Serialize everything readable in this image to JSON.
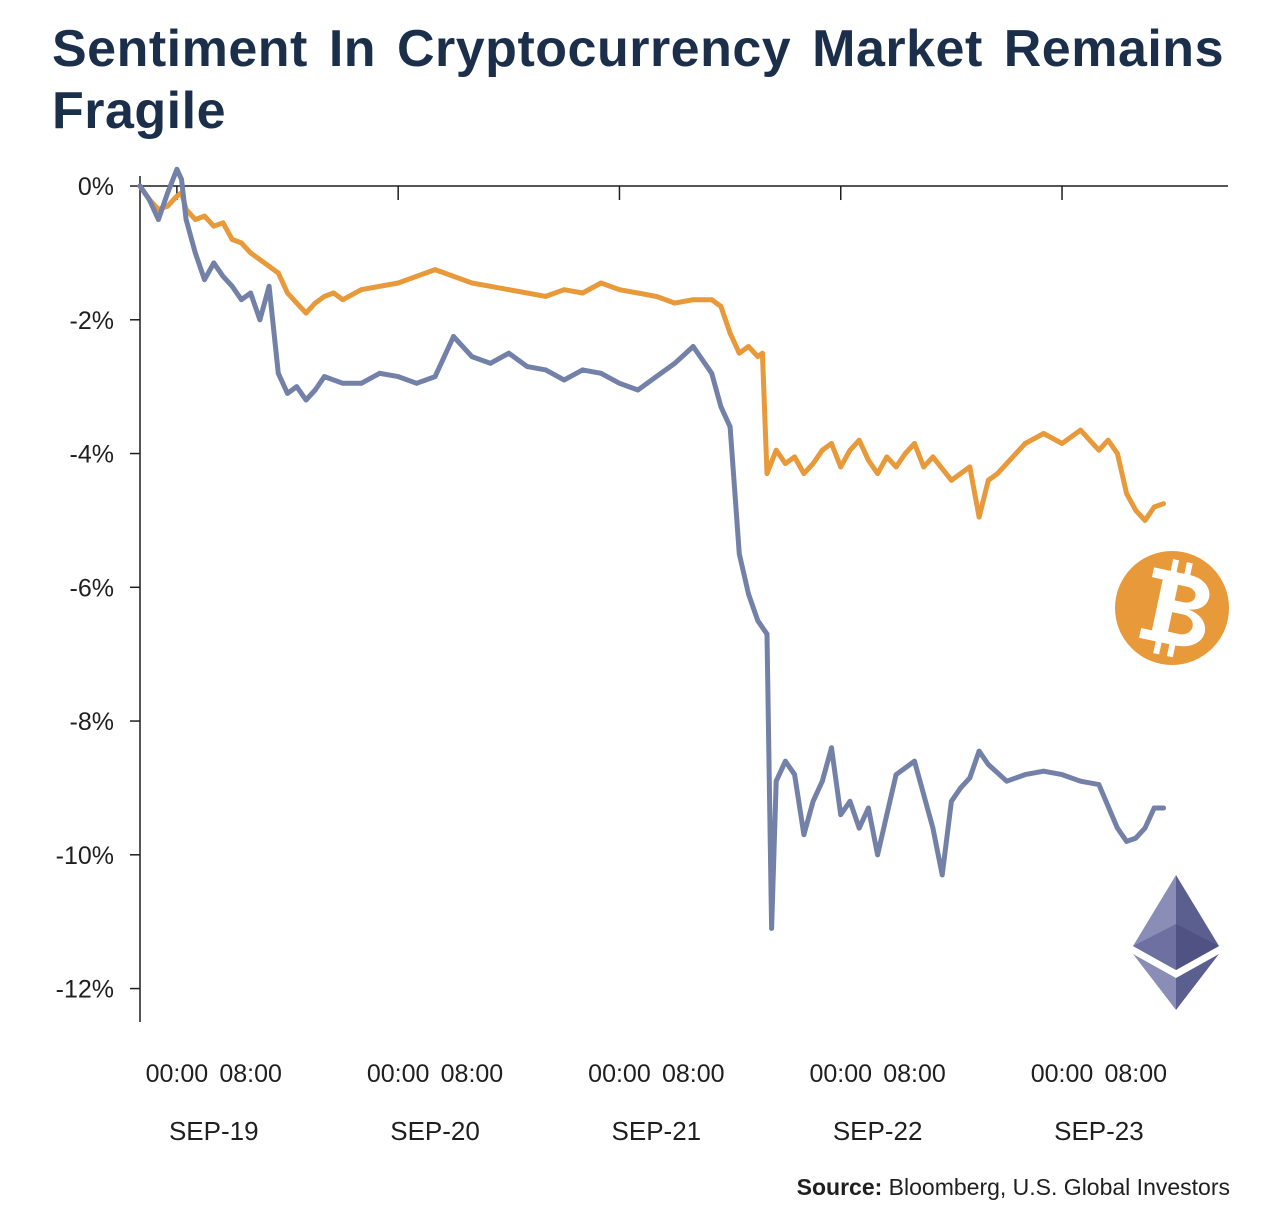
{
  "title": "Sentiment In Cryptocurrency Market Remains Fragile",
  "source_label": "Source:",
  "source_text": " Bloomberg, U.S. Global Investors",
  "icons": {
    "bitcoin": "bitcoin-icon",
    "ethereum": "ethereum-icon"
  },
  "colors": {
    "title": "#1b2f4b",
    "bitcoin": "#e8993a",
    "ethereum": "#7381a8",
    "ethereum_icon_light": "#8a8eb7",
    "ethereum_icon_dark": "#5b5f8f",
    "axis": "#1f1f1f"
  },
  "chart_data": {
    "type": "line",
    "title": "Sentiment In Cryptocurrency Market Remains Fragile",
    "xlabel": "",
    "ylabel": "",
    "ylim": [
      -12.5,
      0.15
    ],
    "xlim": [
      0,
      118
    ],
    "y_ticks": [
      0,
      -2,
      -4,
      -6,
      -8,
      -10,
      -12
    ],
    "y_tick_labels": [
      "0%",
      "-2%",
      "-4%",
      "-6%",
      "-8%",
      "-10%",
      "-12%"
    ],
    "x_ticks": [
      4,
      12,
      28,
      36,
      52,
      60,
      76,
      84,
      100,
      108
    ],
    "x_tick_labels": [
      "00:00",
      "08:00",
      "00:00",
      "08:00",
      "00:00",
      "08:00",
      "00:00",
      "08:00",
      "00:00",
      "08:00"
    ],
    "day_labels": [
      "SEP-19",
      "SEP-20",
      "SEP-21",
      "SEP-22",
      "SEP-23"
    ],
    "day_label_positions": [
      8,
      32,
      56,
      80,
      104
    ],
    "grid": false,
    "legend": "none",
    "x_unit": "hours",
    "series": [
      {
        "icon": "bitcoin-icon",
        "color": "#e8993a",
        "x": [
          0,
          1,
          2,
          3,
          4,
          4.5,
          5,
          6,
          7,
          8,
          9,
          10,
          11,
          12,
          13,
          14,
          15,
          16,
          17,
          18,
          19,
          20,
          21,
          22,
          24,
          26,
          28,
          30,
          32,
          34,
          36,
          38,
          40,
          42,
          44,
          46,
          48,
          50,
          52,
          54,
          56,
          58,
          60,
          62,
          63,
          64,
          65,
          66,
          67,
          67.5,
          68,
          69,
          70,
          71,
          72,
          73,
          74,
          75,
          76,
          77,
          78,
          79,
          80,
          81,
          82,
          83,
          84,
          85,
          86,
          88,
          90,
          91,
          92,
          93,
          94,
          95,
          96,
          98,
          100,
          102,
          103,
          104,
          105,
          106,
          107,
          108,
          109,
          110,
          111
        ],
        "y": [
          0,
          -0.2,
          -0.35,
          -0.3,
          -0.15,
          -0.1,
          -0.35,
          -0.5,
          -0.45,
          -0.6,
          -0.55,
          -0.8,
          -0.85,
          -1.0,
          -1.1,
          -1.2,
          -1.3,
          -1.6,
          -1.75,
          -1.9,
          -1.75,
          -1.65,
          -1.6,
          -1.7,
          -1.55,
          -1.5,
          -1.45,
          -1.35,
          -1.25,
          -1.35,
          -1.45,
          -1.5,
          -1.55,
          -1.6,
          -1.65,
          -1.55,
          -1.6,
          -1.45,
          -1.55,
          -1.6,
          -1.65,
          -1.75,
          -1.7,
          -1.7,
          -1.8,
          -2.2,
          -2.5,
          -2.4,
          -2.55,
          -2.5,
          -4.3,
          -3.95,
          -4.15,
          -4.05,
          -4.3,
          -4.15,
          -3.95,
          -3.85,
          -4.2,
          -3.95,
          -3.8,
          -4.1,
          -4.3,
          -4.05,
          -4.2,
          -4.0,
          -3.85,
          -4.2,
          -4.05,
          -4.4,
          -4.2,
          -4.95,
          -4.4,
          -4.3,
          -4.15,
          -4.0,
          -3.85,
          -3.7,
          -3.85,
          -3.65,
          -3.8,
          -3.95,
          -3.8,
          -4.0,
          -4.6,
          -4.85,
          -5.0,
          -4.8,
          -4.75
        ]
      },
      {
        "icon": "ethereum-icon",
        "color": "#7381a8",
        "x": [
          0,
          1,
          2,
          3,
          4,
          4.5,
          5,
          6,
          7,
          8,
          9,
          10,
          11,
          12,
          13,
          14,
          15,
          16,
          17,
          18,
          19,
          20,
          22,
          24,
          26,
          28,
          30,
          32,
          34,
          36,
          38,
          40,
          42,
          44,
          46,
          48,
          50,
          52,
          54,
          56,
          58,
          60,
          62,
          63,
          64,
          65,
          66,
          67,
          67.5,
          68,
          68.5,
          69,
          70,
          71,
          72,
          73,
          74,
          75,
          76,
          77,
          78,
          79,
          80,
          81,
          82,
          84,
          86,
          87,
          88,
          89,
          90,
          91,
          92,
          94,
          96,
          98,
          100,
          102,
          104,
          106,
          107,
          108,
          109,
          110,
          111
        ],
        "y": [
          0,
          -0.2,
          -0.5,
          -0.1,
          0.25,
          0.1,
          -0.5,
          -1.0,
          -1.4,
          -1.15,
          -1.35,
          -1.5,
          -1.7,
          -1.6,
          -2.0,
          -1.5,
          -2.8,
          -3.1,
          -3.0,
          -3.2,
          -3.05,
          -2.85,
          -2.95,
          -2.95,
          -2.8,
          -2.85,
          -2.95,
          -2.85,
          -2.25,
          -2.55,
          -2.65,
          -2.5,
          -2.7,
          -2.75,
          -2.9,
          -2.75,
          -2.8,
          -2.95,
          -3.05,
          -2.85,
          -2.65,
          -2.4,
          -2.8,
          -3.3,
          -3.6,
          -5.5,
          -6.1,
          -6.5,
          -6.6,
          -6.7,
          -11.1,
          -8.9,
          -8.6,
          -8.8,
          -9.7,
          -9.2,
          -8.9,
          -8.4,
          -9.4,
          -9.2,
          -9.6,
          -9.3,
          -10.0,
          -9.4,
          -8.8,
          -8.6,
          -9.6,
          -10.3,
          -9.2,
          -9.0,
          -8.85,
          -8.45,
          -8.65,
          -8.9,
          -8.8,
          -8.75,
          -8.8,
          -8.9,
          -8.95,
          -9.6,
          -9.8,
          -9.75,
          -9.6,
          -9.3,
          -9.3
        ]
      }
    ]
  }
}
